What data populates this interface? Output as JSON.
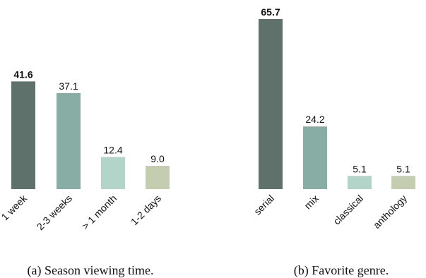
{
  "chart_data": [
    {
      "type": "bar",
      "title": "",
      "caption": "(a) Season viewing time.",
      "categories": [
        "1 week",
        "2-3 weeks",
        "> 1 month",
        "1-2 days"
      ],
      "values": [
        41.6,
        37.1,
        12.4,
        9.0
      ],
      "value_labels": [
        "41.6",
        "37.1",
        "12.4",
        "9.0"
      ],
      "highlight_index": 0,
      "colors": [
        "#5e716b",
        "#88ada4",
        "#b3d4c8",
        "#c4cdb0"
      ],
      "xlabel": "",
      "ylabel": "",
      "ylim": [
        0,
        65.7
      ],
      "grid": false,
      "tick_rotation": -45
    },
    {
      "type": "bar",
      "title": "",
      "caption": "(b) Favorite genre.",
      "categories": [
        "serial",
        "mix",
        "classical",
        "anthology"
      ],
      "values": [
        65.7,
        24.2,
        5.1,
        5.1
      ],
      "value_labels": [
        "65.7",
        "24.2",
        "5.1",
        "5.1"
      ],
      "highlight_index": 0,
      "colors": [
        "#5e716b",
        "#88ada4",
        "#b3d4c8",
        "#c4cdb0"
      ],
      "xlabel": "",
      "ylabel": "",
      "ylim": [
        0,
        65.7
      ],
      "grid": false,
      "tick_rotation": -45
    }
  ]
}
